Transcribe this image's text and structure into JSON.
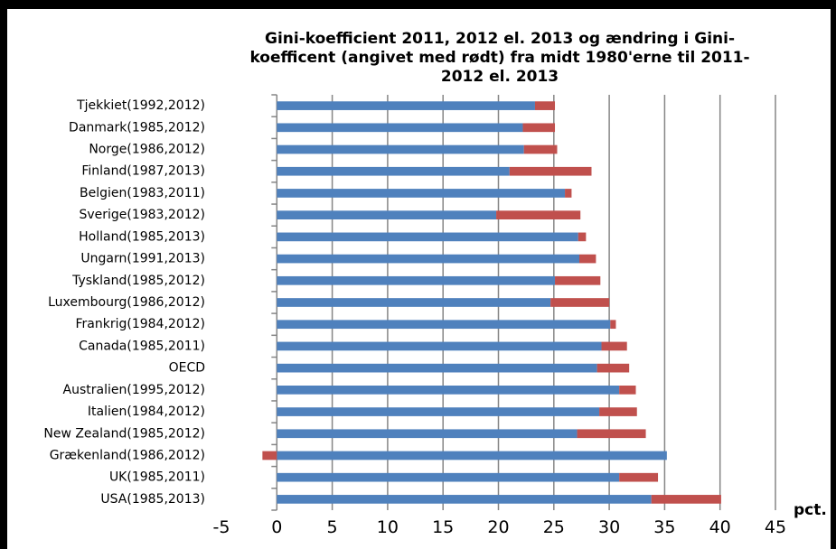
{
  "chart_data": {
    "type": "stacked-bar-horizontal",
    "title": [
      "Gini-koefficient 2011, 2012 el. 2013 og ændring i Gini-",
      "koefficent (angivet med rødt) fra midt 1980'erne til 2011-",
      "2012 el. 2013"
    ],
    "x_unit_label": "pct.",
    "categories": [
      "Tjekkiet(1992,2012)",
      "Danmark(1985,2012)",
      "Norge(1986,2012)",
      "Finland(1987,2013)",
      "Belgien(1983,2011)",
      "Sverige(1983,2012)",
      "Holland(1985,2013)",
      "Ungarn(1991,2013)",
      "Tyskland(1985,2012)",
      "Luxembourg(1986,2012)",
      "Frankrig(1984,2012)",
      "Canada(1985,2011)",
      "OECD",
      "Australien(1995,2012)",
      "Italien(1984,2012)",
      "New Zealand(1985,2012)",
      "Grækenland(1986,2012)",
      "UK(1985,2011)",
      "USA(1985,2013)"
    ],
    "series": [
      {
        "color": "#4f81bd",
        "values": [
          23.3,
          22.2,
          22.3,
          21.0,
          26.0,
          19.8,
          27.2,
          27.3,
          25.1,
          24.7,
          30.1,
          29.3,
          28.9,
          30.9,
          29.1,
          27.1,
          35.2,
          30.9,
          33.8
        ]
      },
      {
        "color": "#c0504d",
        "values": [
          1.8,
          2.9,
          3.0,
          7.4,
          0.6,
          7.6,
          0.7,
          1.5,
          4.1,
          5.3,
          0.5,
          2.3,
          2.9,
          1.5,
          3.4,
          6.2,
          -1.3,
          3.5,
          6.3
        ]
      }
    ],
    "xlim": [
      -5,
      45
    ],
    "xticks": [
      -5,
      0,
      5,
      10,
      15,
      20,
      25,
      30,
      35,
      40,
      45
    ],
    "grid": true
  }
}
